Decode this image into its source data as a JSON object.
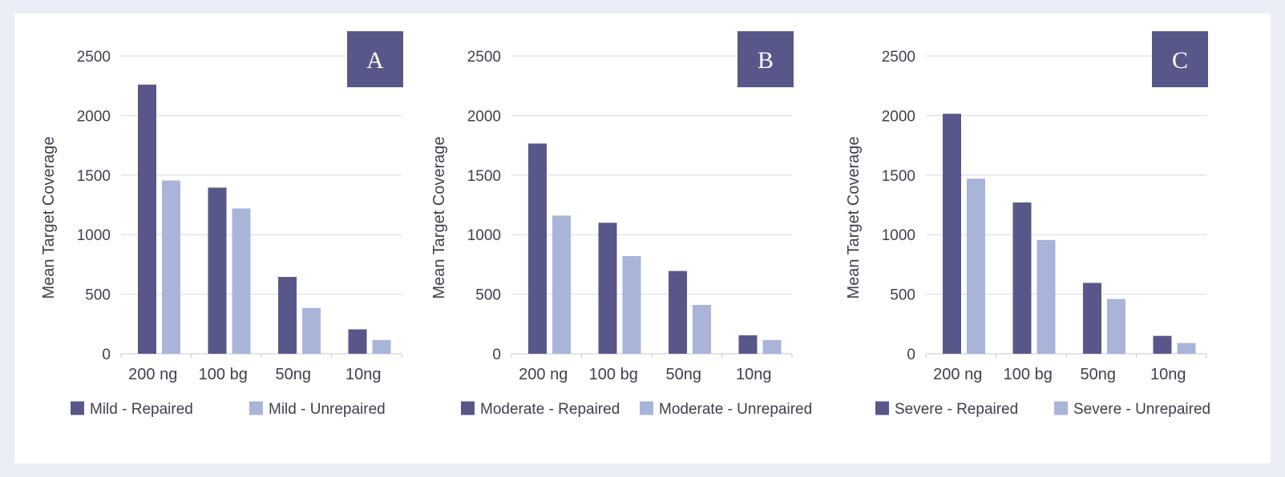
{
  "colors": {
    "repaired": "#575789",
    "unrepaired": "#a9b4d9",
    "badge": "#575789",
    "grid": "#d6d8e8",
    "axis": "#c4c6d6"
  },
  "chart_data": [
    {
      "type": "bar",
      "label": "A",
      "ylabel": "Mean Target Coverage",
      "ylim": [
        0,
        2500
      ],
      "yticks": [
        0,
        500,
        1000,
        1500,
        2000,
        2500
      ],
      "categories": [
        "200 ng",
        "100 bg",
        "50ng",
        "10ng"
      ],
      "series": [
        {
          "name": "Mild - Repaired",
          "values": [
            2260,
            1395,
            645,
            205
          ]
        },
        {
          "name": "Mild - Unrepaired",
          "values": [
            1455,
            1220,
            385,
            115
          ]
        }
      ]
    },
    {
      "type": "bar",
      "label": "B",
      "ylabel": "Mean Target Coverage",
      "ylim": [
        0,
        2500
      ],
      "yticks": [
        0,
        500,
        1000,
        1500,
        2000,
        2500
      ],
      "categories": [
        "200 ng",
        "100 bg",
        "50ng",
        "10ng"
      ],
      "series": [
        {
          "name": "Moderate - Repaired",
          "values": [
            1765,
            1100,
            695,
            155
          ]
        },
        {
          "name": "Moderate - Unrepaired",
          "values": [
            1160,
            820,
            410,
            115
          ]
        }
      ]
    },
    {
      "type": "bar",
      "label": "C",
      "ylabel": "Mean Target Coverage",
      "ylim": [
        0,
        2500
      ],
      "yticks": [
        0,
        500,
        1000,
        1500,
        2000,
        2500
      ],
      "categories": [
        "200 ng",
        "100 bg",
        "50ng",
        "10ng"
      ],
      "series": [
        {
          "name": "Severe - Repaired",
          "values": [
            2015,
            1270,
            595,
            150
          ]
        },
        {
          "name": "Severe - Unrepaired",
          "values": [
            1470,
            955,
            460,
            90
          ]
        }
      ]
    }
  ]
}
